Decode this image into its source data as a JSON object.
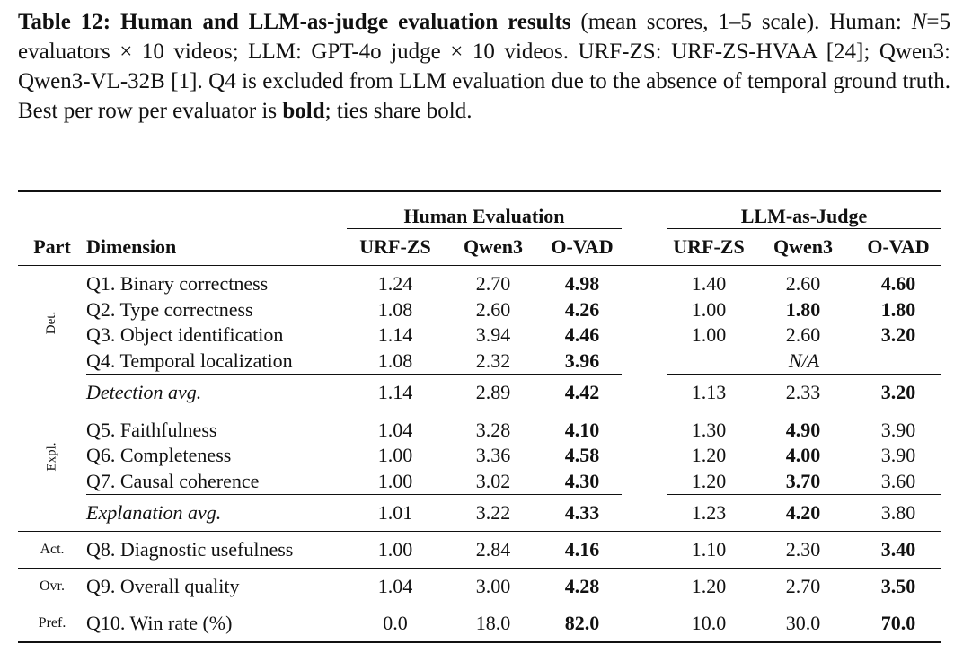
{
  "caption": {
    "label": "Table 12:",
    "title": "Human and LLM-as-judge evaluation results",
    "after_title": " (mean scores, 1–5 scale). Human: ",
    "N": "N",
    "after_N": "=5 evaluators × 10 videos; LLM: GPT-4o judge × 10 videos. URF-ZS: URF-ZS-HVAA [24]; Qwen3: Qwen3-VL-32B [1]. Q4 is excluded from LLM evaluation due to the absence of temporal ground truth. Best per row per evaluator is ",
    "bold_word": "bold",
    "tail": "; ties share bold."
  },
  "table": {
    "group_headers": {
      "human": "Human Evaluation",
      "llm": "LLM-as-Judge"
    },
    "col_headers": {
      "part": "Part",
      "dimension": "Dimension",
      "h1": "URF-ZS",
      "h2": "Qwen3",
      "h3": "O-VAD",
      "l1": "URF-ZS",
      "l2": "Qwen3",
      "l3": "O-VAD"
    },
    "sections": {
      "det": {
        "part": "Det.",
        "rows": [
          {
            "dim": "Q1. Binary correctness",
            "h": [
              "1.24",
              "2.70",
              "4.98"
            ],
            "l": [
              "1.40",
              "2.60",
              "4.60"
            ]
          },
          {
            "dim": "Q2. Type correctness",
            "h": [
              "1.08",
              "2.60",
              "4.26"
            ],
            "l": [
              "1.00",
              "1.80",
              "1.80"
            ]
          },
          {
            "dim": "Q3. Object identification",
            "h": [
              "1.14",
              "3.94",
              "4.46"
            ],
            "l": [
              "1.00",
              "2.60",
              "3.20"
            ]
          },
          {
            "dim": "Q4. Temporal localization",
            "h": [
              "1.08",
              "2.32",
              "3.96"
            ],
            "na": "N/A"
          }
        ],
        "avg": {
          "dim": "Detection avg.",
          "h": [
            "1.14",
            "2.89",
            "4.42"
          ],
          "l": [
            "1.13",
            "2.33",
            "3.20"
          ]
        }
      },
      "expl": {
        "part": "Expl.",
        "rows": [
          {
            "dim": "Q5. Faithfulness",
            "h": [
              "1.04",
              "3.28",
              "4.10"
            ],
            "l": [
              "1.30",
              "4.90",
              "3.90"
            ]
          },
          {
            "dim": "Q6. Completeness",
            "h": [
              "1.00",
              "3.36",
              "4.58"
            ],
            "l": [
              "1.20",
              "4.00",
              "3.90"
            ]
          },
          {
            "dim": "Q7. Causal coherence",
            "h": [
              "1.00",
              "3.02",
              "4.30"
            ],
            "l": [
              "1.20",
              "3.70",
              "3.60"
            ]
          }
        ],
        "avg": {
          "dim": "Explanation avg.",
          "h": [
            "1.01",
            "3.22",
            "4.33"
          ],
          "l": [
            "1.23",
            "4.20",
            "3.80"
          ]
        }
      },
      "act": {
        "part": "Act.",
        "dim": "Q8. Diagnostic usefulness",
        "h": [
          "1.00",
          "2.84",
          "4.16"
        ],
        "l": [
          "1.10",
          "2.30",
          "3.40"
        ]
      },
      "ovr": {
        "part": "Ovr.",
        "dim": "Q9. Overall quality",
        "h": [
          "1.04",
          "3.00",
          "4.28"
        ],
        "l": [
          "1.20",
          "2.70",
          "3.50"
        ]
      },
      "pref": {
        "part": "Pref.",
        "dim": "Q10. Win rate (%)",
        "h": [
          "0.0",
          "18.0",
          "82.0"
        ],
        "l": [
          "10.0",
          "30.0",
          "70.0"
        ]
      }
    }
  }
}
